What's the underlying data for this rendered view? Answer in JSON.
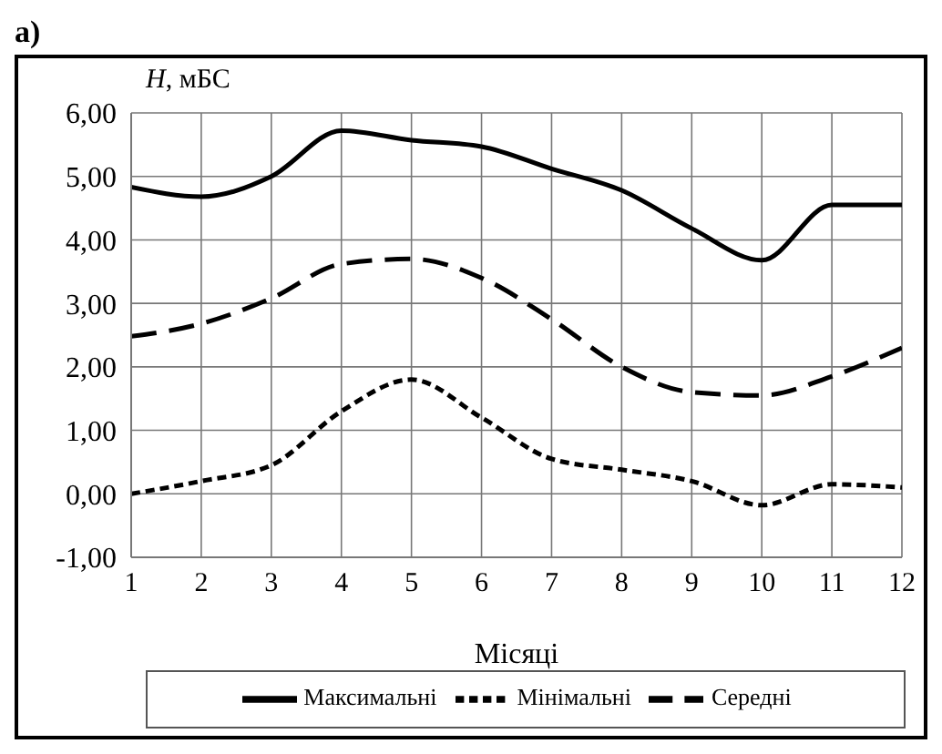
{
  "chart_data": {
    "type": "line",
    "title": "а)",
    "xlabel": "Місяці",
    "ylabel": "H, мБС",
    "x": [
      1,
      2,
      3,
      4,
      5,
      6,
      7,
      8,
      9,
      10,
      11,
      12
    ],
    "series": [
      {
        "name": "Середні",
        "color": "#000000",
        "line_style": "dashed",
        "values": [
          2.48,
          2.68,
          3.08,
          3.62,
          3.7,
          3.4,
          2.75,
          2.0,
          1.6,
          1.55,
          1.85,
          2.3
        ]
      },
      {
        "name": "Максимальні",
        "color": "#000000",
        "line_style": "solid",
        "values": [
          4.83,
          4.68,
          5.0,
          5.72,
          5.57,
          5.47,
          5.12,
          4.78,
          4.18,
          3.68,
          4.55,
          4.55
        ]
      },
      {
        "name": "Мінімальні",
        "color": "#000000",
        "line_style": "dotted",
        "values": [
          0,
          0.2,
          0.45,
          1.3,
          1.8,
          1.2,
          0.55,
          0.38,
          0.2,
          -0.18,
          0.15,
          0.1
        ]
      }
    ],
    "xlim": [
      1,
      12
    ],
    "xticks": [
      1,
      2,
      3,
      4,
      5,
      6,
      7,
      8,
      9,
      10,
      11,
      12
    ],
    "ylim": [
      -1,
      6
    ],
    "yticks": [
      {
        "value": -1,
        "label": "-1,00"
      },
      {
        "value": 0,
        "label": "0,00"
      },
      {
        "value": 1,
        "label": "1,00"
      },
      {
        "value": 2,
        "label": "2,00"
      },
      {
        "value": 3,
        "label": "3,00"
      },
      {
        "value": 4,
        "label": "4,00"
      },
      {
        "value": 5,
        "label": "5,00"
      },
      {
        "value": 6,
        "label": "6,00"
      }
    ],
    "grid": true,
    "legend": "bottom",
    "marker": "none"
  }
}
